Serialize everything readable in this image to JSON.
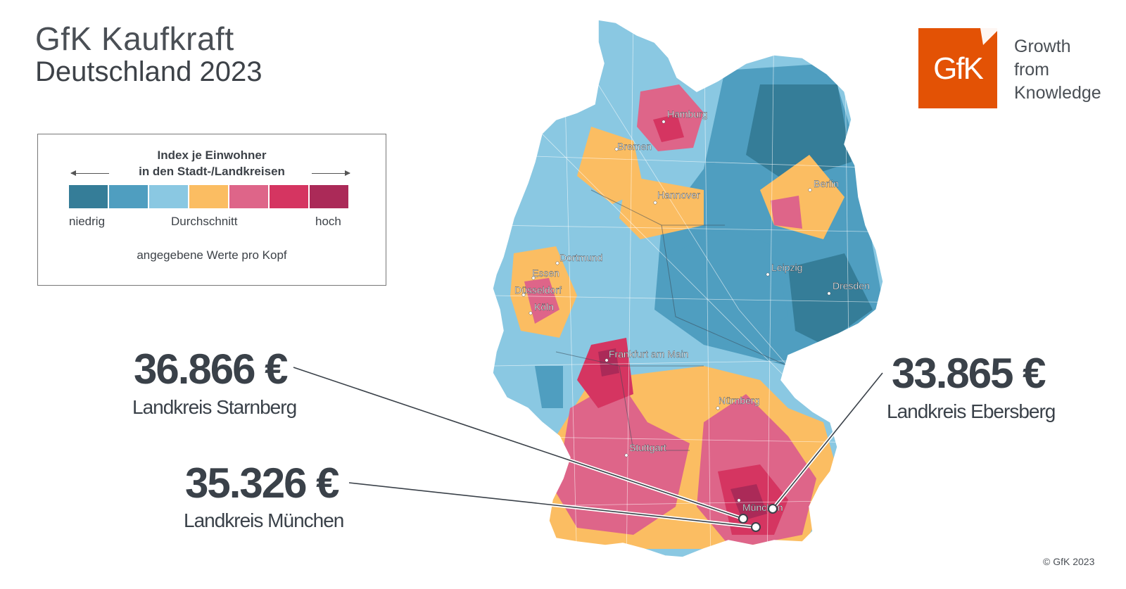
{
  "title": {
    "line1": "GfK Kaufkraft",
    "line2": "Deutschland 2023"
  },
  "legend": {
    "heading_line1": "Index je Einwohner",
    "heading_line2": "in den Stadt-/Landkreisen",
    "low": "niedrig",
    "mid": "Durchschnitt",
    "high": "hoch",
    "note": "angegebene Werte pro Kopf",
    "colors": [
      "#357d98",
      "#4f9ec0",
      "#8ac8e2",
      "#fbbd62",
      "#de6589",
      "#d53561",
      "#ab2a58"
    ]
  },
  "callouts": [
    {
      "value": "36.866 €",
      "label": "Landkreis Starnberg"
    },
    {
      "value": "35.326 €",
      "label": "Landkreis München"
    },
    {
      "value": "33.865 €",
      "label": "Landkreis Ebersberg"
    }
  ],
  "cities": [
    {
      "name": "Hamburg"
    },
    {
      "name": "Bremen"
    },
    {
      "name": "Berlin"
    },
    {
      "name": "Hannover"
    },
    {
      "name": "Dortmund"
    },
    {
      "name": "Essen"
    },
    {
      "name": "Leipzig"
    },
    {
      "name": "Düsseldorf"
    },
    {
      "name": "Dresden"
    },
    {
      "name": "Köln"
    },
    {
      "name": "Frankfurt am Main"
    },
    {
      "name": "Nürnberg"
    },
    {
      "name": "Stuttgart"
    },
    {
      "name": "München"
    }
  ],
  "logo": {
    "mark": "GfK",
    "tagline1": "Growth",
    "tagline2": "from",
    "tagline3": "Knowledge"
  },
  "copyright": "© GfK 2023"
}
